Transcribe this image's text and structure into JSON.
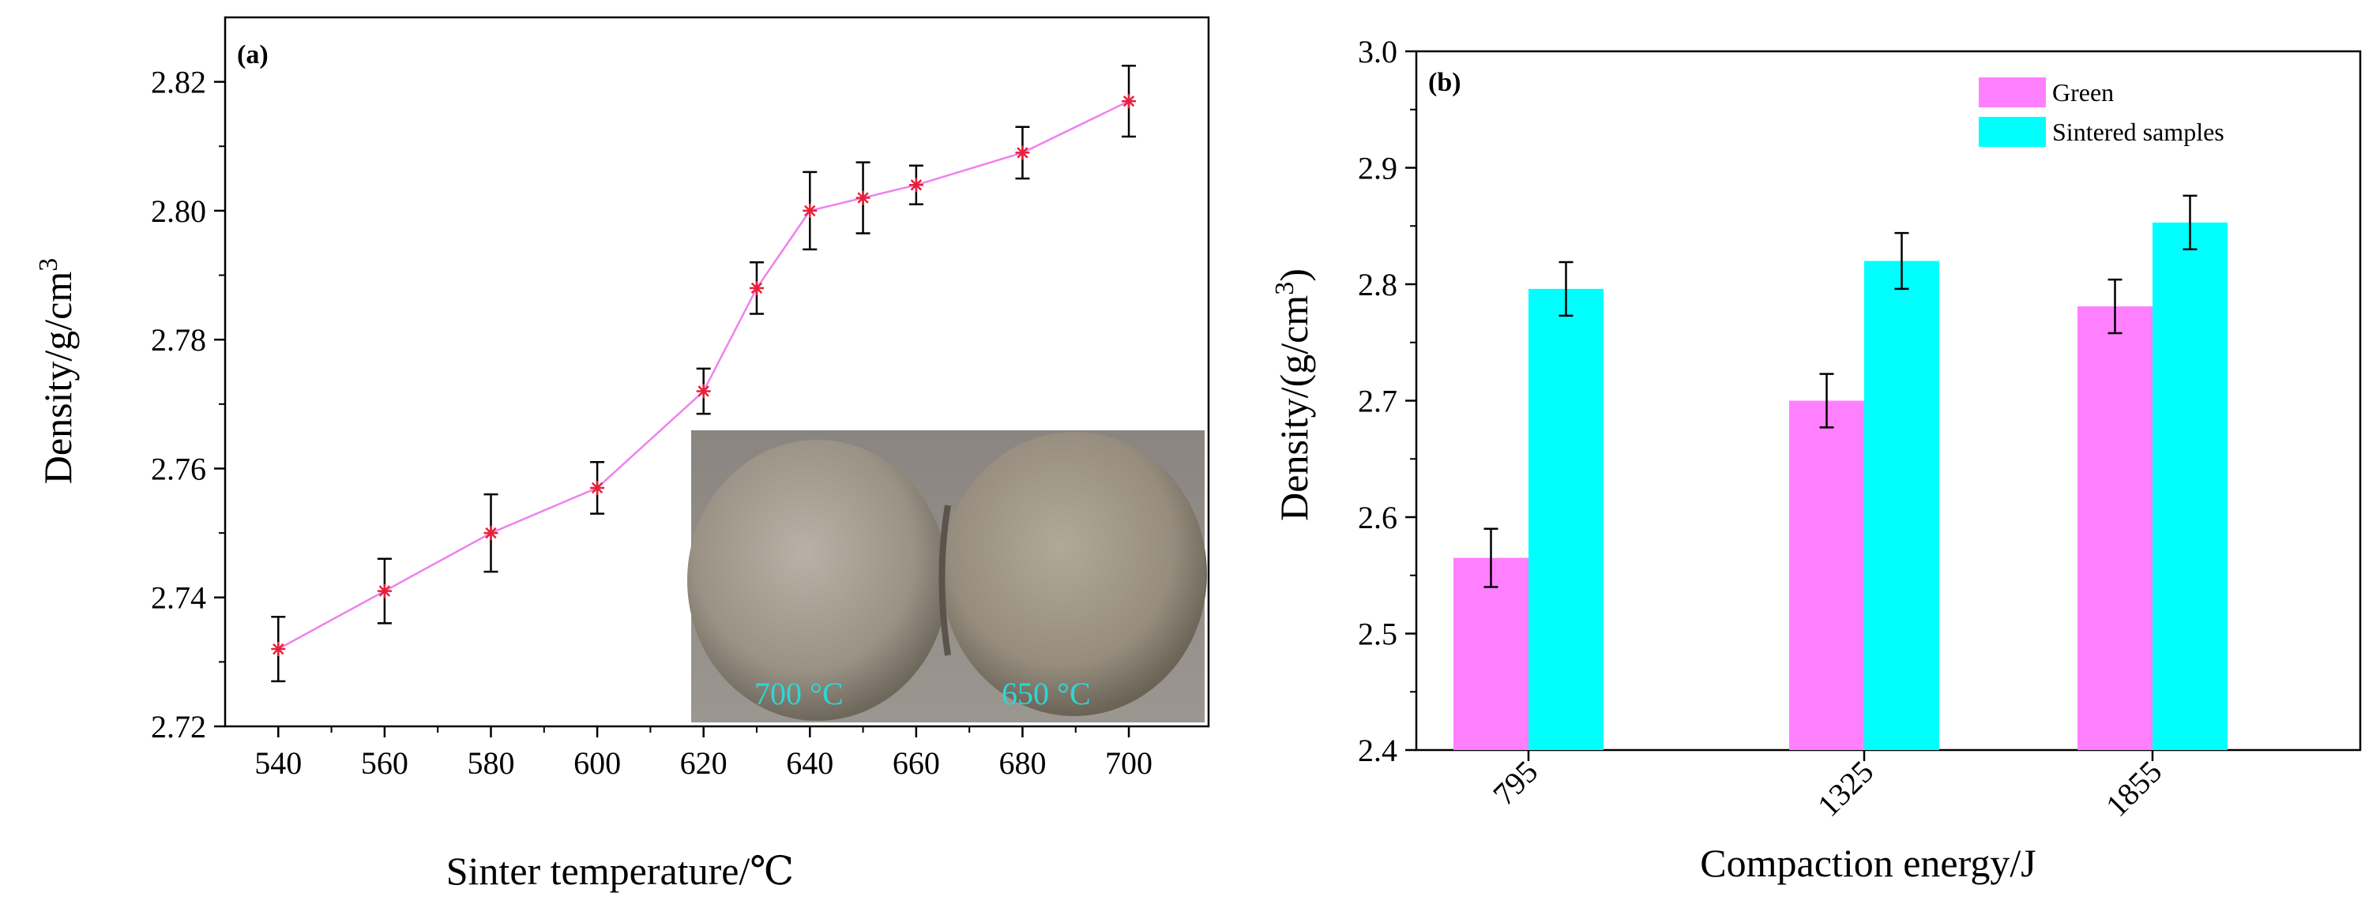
{
  "chart_data": [
    {
      "type": "line",
      "panel_label": "(a)",
      "xlabel": "Sinter temperature/℃",
      "ylabel": "Density/g/cm",
      "ylabel_superscript": "3",
      "xlim": [
        530,
        715
      ],
      "ylim": [
        2.72,
        2.83
      ],
      "x_ticks": [
        540,
        560,
        580,
        600,
        620,
        640,
        660,
        680,
        700
      ],
      "y_ticks": [
        2.72,
        2.74,
        2.76,
        2.78,
        2.8,
        2.82
      ],
      "y_tick_labels": [
        "2.72",
        "2.74",
        "2.76",
        "2.78",
        "2.80",
        "2.82"
      ],
      "series": [
        {
          "name": "Density",
          "color": "#ee82ee",
          "marker_color": "#e8203a",
          "x": [
            540,
            560,
            580,
            600,
            620,
            630,
            640,
            650,
            660,
            680,
            700
          ],
          "y": [
            2.732,
            2.741,
            2.75,
            2.757,
            2.772,
            2.788,
            2.8,
            2.802,
            2.804,
            2.809,
            2.817
          ],
          "error": [
            0.005,
            0.005,
            0.006,
            0.004,
            0.0035,
            0.004,
            0.006,
            0.0055,
            0.003,
            0.004,
            0.0055
          ]
        }
      ],
      "inset": {
        "labels": [
          "700 °C",
          "650 °C"
        ],
        "label_color": "#2fd6d6"
      }
    },
    {
      "type": "bar",
      "panel_label": "(b)",
      "xlabel": "Compaction energy/J",
      "ylabel": "Density/(g/cm",
      "ylabel_superscript": "3",
      "ylabel_suffix": ")",
      "categories": [
        "795",
        "1325",
        "1855"
      ],
      "ylim": [
        2.4,
        3.0
      ],
      "y_ticks": [
        2.4,
        2.5,
        2.6,
        2.7,
        2.8,
        2.9,
        3.0
      ],
      "y_tick_labels": [
        "2.4",
        "2.5",
        "2.6",
        "2.7",
        "2.8",
        "2.9",
        "3.0"
      ],
      "legend_position": "top-right",
      "series": [
        {
          "name": "Green",
          "color": "#ff80ff",
          "values": [
            2.565,
            2.7,
            2.781
          ],
          "error": [
            0.025,
            0.023,
            0.023
          ]
        },
        {
          "name": "Sintered samples",
          "color": "#00ffff",
          "values": [
            2.796,
            2.82,
            2.853
          ],
          "error": [
            0.023,
            0.024,
            0.023
          ]
        }
      ]
    }
  ]
}
